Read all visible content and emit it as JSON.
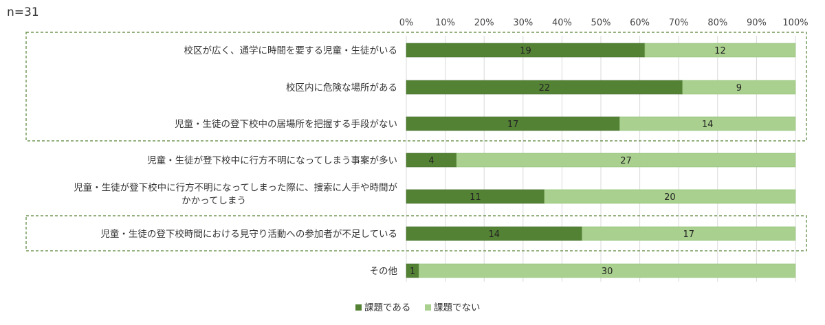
{
  "chart_data": {
    "type": "bar",
    "stacked": true,
    "orientation": "horizontal",
    "note": "n=31",
    "categories": [
      "校区が広く、通学に時間を要する児童・生徒がいる",
      "校区内に危険な場所がある",
      "児童・生徒の登下校中の居場所を把握する手段がない",
      "児童・生徒が登下校中に行方不明になってしまう事案が多い",
      "児童・生徒が登下校中に行方不明になってしまった際に、捜索に人手や時間が\nかかってしまう",
      "児童・生徒の登下校時間における見守り活動への参加者が不足している",
      "その他"
    ],
    "series": [
      {
        "name": "課題である",
        "color": "#548235",
        "values": [
          19,
          22,
          17,
          4,
          11,
          14,
          1
        ]
      },
      {
        "name": "課題でない",
        "color": "#a9d08e",
        "values": [
          12,
          9,
          14,
          27,
          20,
          17,
          30
        ]
      }
    ],
    "xlim": [
      0,
      100
    ],
    "x_unit": "percent",
    "x_ticks": [
      "0%",
      "10%",
      "20%",
      "30%",
      "40%",
      "50%",
      "60%",
      "70%",
      "80%",
      "90%",
      "100%"
    ],
    "grid": true,
    "legend": "bottom-center",
    "highlight_groups": [
      [
        0,
        1,
        2
      ],
      [
        5
      ]
    ]
  }
}
